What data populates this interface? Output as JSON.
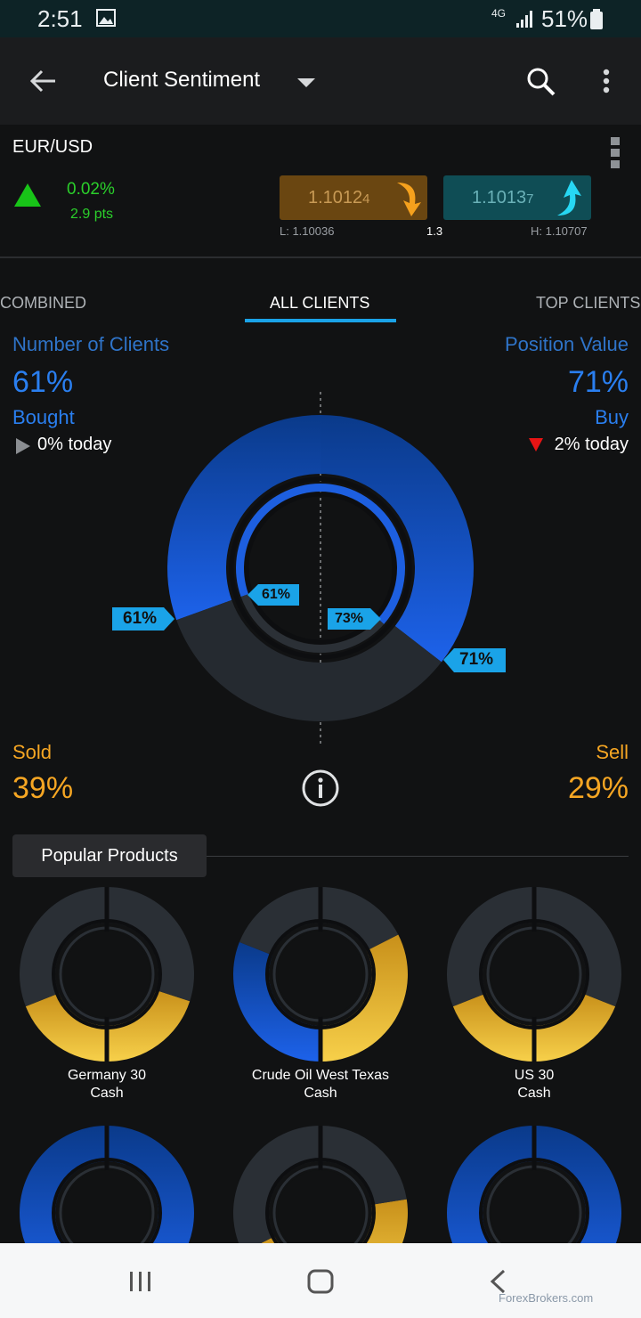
{
  "status_bar": {
    "time": "2:51",
    "signal": "4G",
    "battery": "51%"
  },
  "header": {
    "title": "Client Sentiment",
    "icons": [
      "back-arrow-icon",
      "dropdown-caret-icon",
      "search-icon",
      "more-vert-icon"
    ]
  },
  "instrument": {
    "symbol": "EUR/USD",
    "change_pct": "0.02%",
    "change_pts": "2.9 pts",
    "sell_price": "1.1012",
    "sell_price_small": "4",
    "buy_price": "1.1013",
    "buy_price_small": "7",
    "low": "L: 1.10036",
    "spread": "1.3",
    "high": "H: 1.10707"
  },
  "tabs": [
    "COMBINED",
    "ALL CLIENTS",
    "TOP CLIENTS"
  ],
  "active_tab": "ALL CLIENTS",
  "sentiment": {
    "left_title": "Number of Clients",
    "left_pct": "61%",
    "left_side": "Bought",
    "left_today": "0% today",
    "right_title": "Position Value",
    "right_pct": "71%",
    "right_side": "Buy",
    "right_today": "2% today",
    "sold_label": "Sold",
    "sold_pct": "39%",
    "sell_label": "Sell",
    "sell_pct": "29%",
    "tag_outer_left": "61%",
    "tag_inner_left": "61%",
    "tag_inner_right": "73%",
    "tag_outer_right": "71%"
  },
  "chart_data": {
    "type": "pie",
    "clients": {
      "bought": 61,
      "sold": 39,
      "inner_ring": 61
    },
    "position_value": {
      "buy": 71,
      "sell": 29,
      "inner_ring": 73
    }
  },
  "colors": {
    "buy_blue": "#1f5fe0",
    "sell_gray": "#252a30",
    "gold": "#f2c02e",
    "tag": "#1aa3e8"
  },
  "popular": {
    "title": "Popular Products",
    "products": [
      {
        "line1": "Germany 30",
        "line2": "Cash"
      },
      {
        "line1": "Crude Oil West Texas",
        "line2": "Cash"
      },
      {
        "line1": "US 30",
        "line2": "Cash"
      }
    ]
  },
  "watermark": "ForexBrokers.com"
}
